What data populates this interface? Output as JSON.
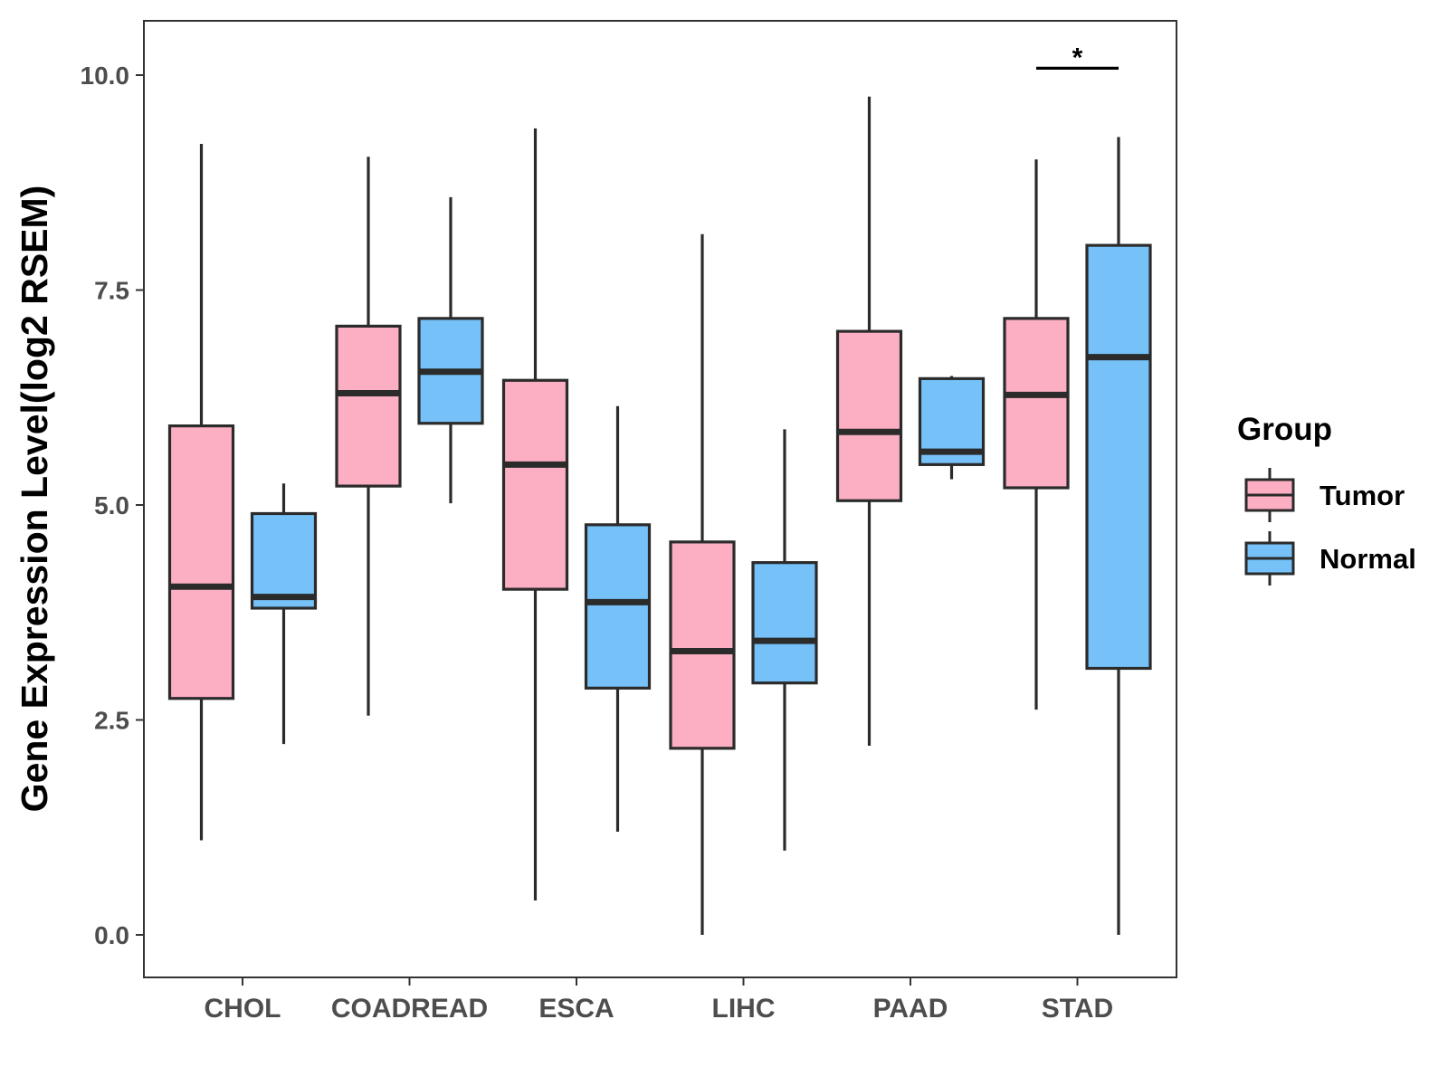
{
  "chart_data": {
    "type": "boxplot",
    "title": "",
    "xlabel": "",
    "ylabel": "Gene Expression Level(log2 RSEM)",
    "ylim": [
      -0.5,
      10.65
    ],
    "yticks": [
      0.0,
      2.5,
      5.0,
      7.5,
      10.0
    ],
    "ytick_labels": [
      "0.0",
      "2.5",
      "5.0",
      "7.5",
      "10.0"
    ],
    "categories": [
      "CHOL",
      "COADREAD",
      "ESCA",
      "LIHC",
      "PAAD",
      "STAD"
    ],
    "series": [
      {
        "name": "Tumor",
        "color": "#fcaec2",
        "boxes": [
          {
            "min": 1.1,
            "q1": 2.75,
            "median": 4.05,
            "q3": 5.92,
            "max": 9.2
          },
          {
            "min": 2.55,
            "q1": 5.22,
            "median": 6.3,
            "q3": 7.08,
            "max": 9.05
          },
          {
            "min": 0.4,
            "q1": 4.02,
            "median": 5.47,
            "q3": 6.45,
            "max": 9.38
          },
          {
            "min": 0.0,
            "q1": 2.17,
            "median": 3.3,
            "q3": 4.57,
            "max": 8.15
          },
          {
            "min": 2.2,
            "q1": 5.05,
            "median": 5.85,
            "q3": 7.02,
            "max": 9.75
          },
          {
            "min": 2.62,
            "q1": 5.2,
            "median": 6.28,
            "q3": 7.17,
            "max": 9.02
          }
        ]
      },
      {
        "name": "Normal",
        "color": "#75c1f8",
        "boxes": [
          {
            "min": 2.22,
            "q1": 3.8,
            "median": 3.93,
            "q3": 4.9,
            "max": 5.25
          },
          {
            "min": 5.02,
            "q1": 5.95,
            "median": 6.55,
            "q3": 7.17,
            "max": 8.58
          },
          {
            "min": 1.2,
            "q1": 2.87,
            "median": 3.87,
            "q3": 4.77,
            "max": 6.15
          },
          {
            "min": 0.98,
            "q1": 2.93,
            "median": 3.42,
            "q3": 4.33,
            "max": 5.88
          },
          {
            "min": 5.3,
            "q1": 5.47,
            "median": 5.62,
            "q3": 6.47,
            "max": 6.5
          },
          {
            "min": 0.0,
            "q1": 3.1,
            "median": 6.72,
            "q3": 8.02,
            "max": 9.28
          }
        ]
      }
    ],
    "annotations": [
      {
        "category": "STAD",
        "text": "*",
        "y": 10.08
      }
    ],
    "legend": {
      "title": "Group",
      "position": "right",
      "entries": [
        "Tumor",
        "Normal"
      ]
    },
    "grid": false
  }
}
